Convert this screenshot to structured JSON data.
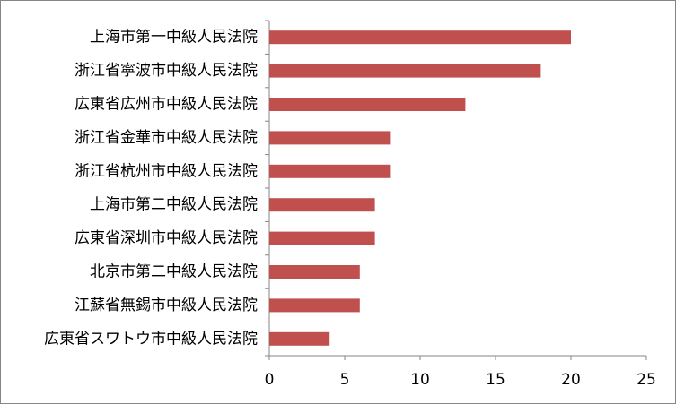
{
  "chart_data": {
    "type": "bar",
    "orientation": "horizontal",
    "categories": [
      "上海市第一中級人民法院",
      "浙江省寧波市中級人民法院",
      "広東省広州市中級人民法院",
      "浙江省金華市中級人民法院",
      "浙江省杭州市中級人民法院",
      "上海市第二中級人民法院",
      "広東省深圳市中級人民法院",
      "北京市第二中級人民法院",
      "江蘇省無錫市中級人民法院",
      "広東省スワトウ市中級人民法院"
    ],
    "values": [
      20,
      18,
      13,
      8,
      8,
      7,
      7,
      6,
      6,
      4
    ],
    "color": "#c0504d",
    "xlim": [
      0,
      25
    ],
    "xticks": [
      0,
      5,
      10,
      15,
      20,
      25
    ],
    "grid": false
  }
}
